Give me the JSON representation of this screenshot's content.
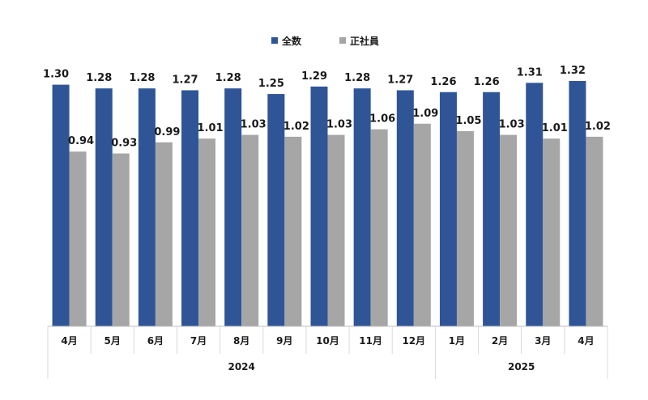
{
  "chart_data": {
    "type": "bar",
    "categories": [
      "4月",
      "5月",
      "6月",
      "7月",
      "8月",
      "9月",
      "10月",
      "11月",
      "12月",
      "1月",
      "2月",
      "3月",
      "4月"
    ],
    "groups": [
      {
        "label": "2024",
        "count": 9
      },
      {
        "label": "2025",
        "count": 4
      }
    ],
    "series": [
      {
        "name": "全数",
        "color": "#2f5597",
        "values": [
          1.3,
          1.28,
          1.28,
          1.27,
          1.28,
          1.25,
          1.29,
          1.28,
          1.27,
          1.26,
          1.26,
          1.31,
          1.32
        ],
        "labels": [
          "1.30",
          "1.28",
          "1.28",
          "1.27",
          "1.28",
          "1.25",
          "1.29",
          "1.28",
          "1.27",
          "1.26",
          "1.26",
          "1.31",
          "1.32"
        ]
      },
      {
        "name": "正社員",
        "color": "#a6a6a6",
        "values": [
          0.94,
          0.93,
          0.99,
          1.01,
          1.03,
          1.02,
          1.03,
          1.06,
          1.09,
          1.05,
          1.03,
          1.01,
          1.02
        ],
        "labels": [
          "0.94",
          "0.93",
          "0.99",
          "1.01",
          "1.03",
          "1.02",
          "1.03",
          "1.06",
          "1.09",
          "1.05",
          "1.03",
          "1.01",
          "1.02"
        ]
      }
    ],
    "ylim": [
      0,
      1.32
    ],
    "legend_position": "top-center",
    "grid": false
  }
}
